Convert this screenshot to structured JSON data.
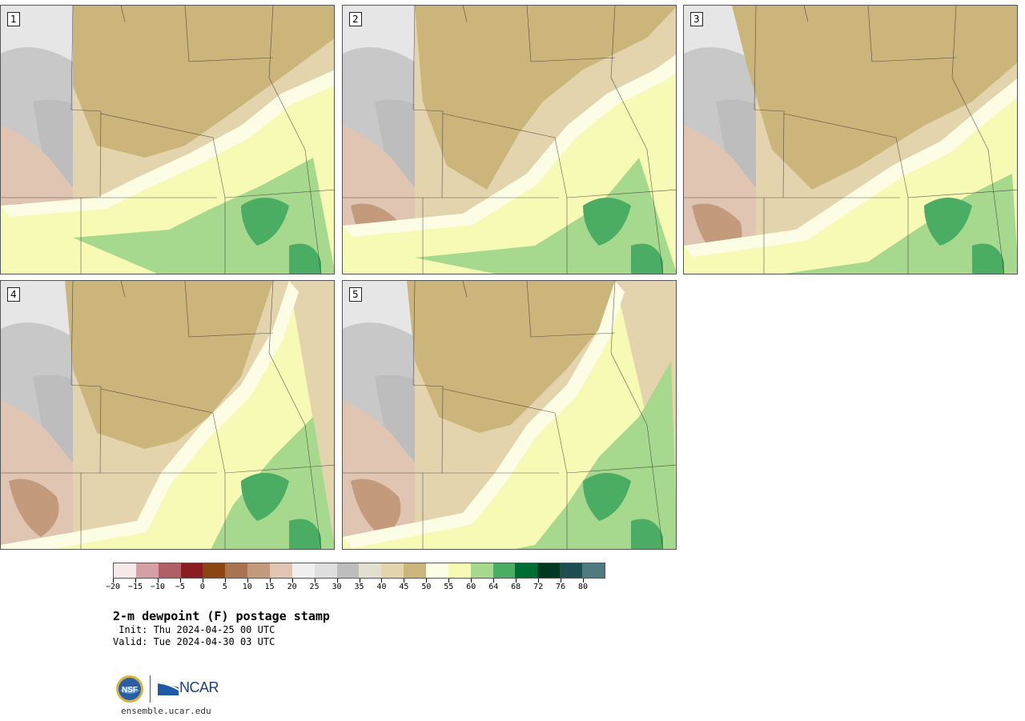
{
  "panels": [
    {
      "label": "1",
      "variant": 0
    },
    {
      "label": "2",
      "variant": 1
    },
    {
      "label": "3",
      "variant": 2
    },
    {
      "label": "4",
      "variant": 3
    },
    {
      "label": "5",
      "variant": 4
    }
  ],
  "colorbar": {
    "colors": [
      "#f5e9ea",
      "#d4a0a6",
      "#b05f64",
      "#8a1c22",
      "#8b4513",
      "#a97350",
      "#c49a7c",
      "#e0c6b2",
      "#efefef",
      "#dedede",
      "#bdbdbd",
      "#e1dfcf",
      "#e4d4ad",
      "#ccb57a",
      "#fdfde6",
      "#f7fab4",
      "#a6d98e",
      "#4aad63",
      "#006d35",
      "#013820",
      "#1d4f50",
      "#4f7a80"
    ],
    "tick_labels": [
      "−20",
      "−15",
      "−10",
      "−5",
      "0",
      "5",
      "10",
      "15",
      "20",
      "25",
      "30",
      "35",
      "40",
      "45",
      "50",
      "55",
      "60",
      "64",
      "68",
      "72",
      "76",
      "80"
    ]
  },
  "title": "2-m dewpoint (F) postage stamp",
  "init": " Init: Thu 2024-04-25 00 UTC",
  "valid": "Valid: Tue 2024-04-30 03 UTC",
  "logos": {
    "nsf": "NSF",
    "ncar": "NCAR"
  },
  "website": "ensemble.ucar.edu"
}
